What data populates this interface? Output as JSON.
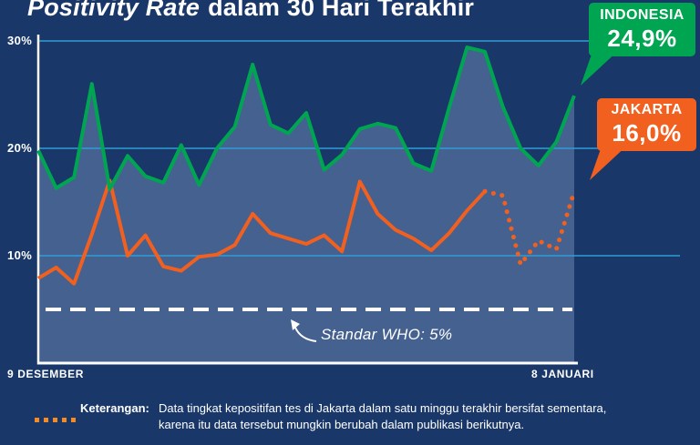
{
  "title": {
    "italic": "Positivity Rate",
    "regular": "dalam 30 Hari Terakhir"
  },
  "y_axis": {
    "ticks": [
      "30%",
      "20%",
      "10%"
    ]
  },
  "x_axis": {
    "start": "9 DESEMBER",
    "end": "8 JANUARI"
  },
  "who": {
    "label": "Standar WHO: 5%"
  },
  "callouts": {
    "indonesia": {
      "name": "INDONESIA",
      "value": "24,9%"
    },
    "jakarta": {
      "name": "JAKARTA",
      "value": "16,0%"
    }
  },
  "note": {
    "label": "Keterangan:",
    "line1": "Data tingkat kepositifan tes di Jakarta dalam satu minggu terakhir bersifat sementara,",
    "line2": "karena itu data tersebut mungkin berubah dalam publikasi berikutnya."
  },
  "colors": {
    "background": "#193769",
    "area_fill": "#45618f",
    "grid": "#2f9ed8",
    "indonesia_green": "#00a551",
    "jakarta_orange": "#f2601f",
    "who_line": "#ffffff",
    "legend_dots": "#f68b22"
  },
  "chart_data": {
    "type": "line",
    "title": "Positivity Rate dalam 30 Hari Terakhir",
    "x_start_label": "9 Desember",
    "x_end_label": "8 Januari",
    "days": 31,
    "ylim": [
      0,
      32
    ],
    "y_ticks_pct": [
      10,
      20,
      30
    ],
    "grid": true,
    "who_reference_pct": 5,
    "who_reference_label": "Standar WHO: 5%",
    "series": [
      {
        "name": "Indonesia",
        "color": "#00a551",
        "area_fill": true,
        "latest_label": "24,9%",
        "values": [
          19.8,
          16.3,
          17.3,
          26.0,
          16.2,
          19.3,
          17.4,
          16.8,
          20.3,
          16.6,
          20.0,
          22.0,
          27.8,
          22.2,
          21.4,
          23.3,
          18.0,
          19.4,
          21.8,
          22.3,
          21.9,
          18.6,
          17.9,
          23.8,
          29.4,
          29.0,
          23.9,
          20.0,
          18.4,
          20.6,
          24.9
        ]
      },
      {
        "name": "Jakarta",
        "color": "#f2601f",
        "provisional_dotted_from_index": 25,
        "latest_label": "16,0%",
        "values": [
          7.9,
          8.9,
          7.4,
          12.0,
          17.0,
          10.0,
          11.9,
          9.0,
          8.6,
          9.9,
          10.1,
          11.0,
          13.9,
          12.1,
          11.6,
          11.1,
          11.9,
          10.4,
          16.9,
          13.9,
          12.4,
          11.6,
          10.5,
          12.1,
          14.2,
          16.0,
          15.6,
          9.2,
          11.4,
          10.6,
          16.0
        ]
      }
    ]
  }
}
